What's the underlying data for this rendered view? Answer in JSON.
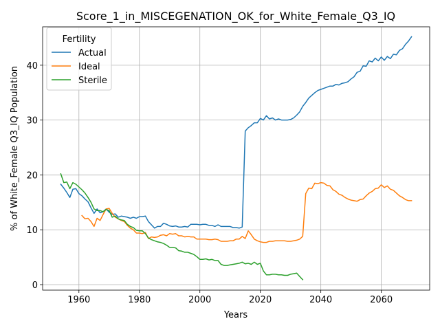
{
  "chart_data": {
    "type": "line",
    "title": "Score_1_in_MISCEGENATION_OK_for_White_Female_Q3_IQ",
    "xlabel": "Years",
    "ylabel": "% of White_Female Q3_IQ Population",
    "xlim": [
      1948,
      2076
    ],
    "ylim": [
      -1,
      47
    ],
    "xticks": [
      1960,
      1980,
      2000,
      2020,
      2040,
      2060
    ],
    "yticks": [
      0,
      10,
      20,
      30,
      40
    ],
    "grid": true,
    "legend": {
      "title": "Fertility",
      "placement": "top-left"
    },
    "series": [
      {
        "name": "Actual",
        "color": "#1f77b4",
        "points": [
          [
            1954,
            18.3
          ],
          [
            1955,
            17.6
          ],
          [
            1956,
            16.8
          ],
          [
            1957,
            15.9
          ],
          [
            1958,
            17.4
          ],
          [
            1959,
            17.5
          ],
          [
            1960,
            16.6
          ],
          [
            1961,
            16.2
          ],
          [
            1962,
            15.6
          ],
          [
            1963,
            15.1
          ],
          [
            1964,
            14.0
          ],
          [
            1965,
            13.0
          ],
          [
            1966,
            13.8
          ],
          [
            1967,
            13.1
          ],
          [
            1968,
            13.3
          ],
          [
            1969,
            13.8
          ],
          [
            1970,
            13.2
          ],
          [
            1971,
            12.8
          ],
          [
            1972,
            12.9
          ],
          [
            1973,
            12.3
          ],
          [
            1974,
            12.5
          ],
          [
            1975,
            12.4
          ],
          [
            1976,
            12.3
          ],
          [
            1977,
            12.1
          ],
          [
            1978,
            12.3
          ],
          [
            1979,
            12.1
          ],
          [
            1980,
            12.4
          ],
          [
            1981,
            12.4
          ],
          [
            1982,
            12.5
          ],
          [
            1983,
            11.5
          ],
          [
            1984,
            10.9
          ],
          [
            1985,
            10.3
          ],
          [
            1986,
            10.6
          ],
          [
            1987,
            10.6
          ],
          [
            1988,
            11.2
          ],
          [
            1989,
            11.0
          ],
          [
            1990,
            10.7
          ],
          [
            1991,
            10.6
          ],
          [
            1992,
            10.7
          ],
          [
            1993,
            10.5
          ],
          [
            1994,
            10.5
          ],
          [
            1995,
            10.6
          ],
          [
            1996,
            10.5
          ],
          [
            1997,
            11.0
          ],
          [
            1998,
            11.0
          ],
          [
            1999,
            11.0
          ],
          [
            2000,
            10.9
          ],
          [
            2001,
            11.0
          ],
          [
            2002,
            11.0
          ],
          [
            2003,
            10.8
          ],
          [
            2004,
            10.8
          ],
          [
            2005,
            10.6
          ],
          [
            2006,
            10.9
          ],
          [
            2007,
            10.6
          ],
          [
            2008,
            10.6
          ],
          [
            2009,
            10.6
          ],
          [
            2010,
            10.6
          ],
          [
            2011,
            10.4
          ],
          [
            2012,
            10.4
          ],
          [
            2013,
            10.3
          ],
          [
            2014,
            10.5
          ],
          [
            2015,
            28.0
          ],
          [
            2016,
            28.6
          ],
          [
            2017,
            29.0
          ],
          [
            2018,
            29.5
          ],
          [
            2019,
            29.5
          ],
          [
            2020,
            30.3
          ],
          [
            2021,
            30.0
          ],
          [
            2022,
            30.8
          ],
          [
            2023,
            30.2
          ],
          [
            2024,
            30.4
          ],
          [
            2025,
            30.0
          ],
          [
            2026,
            30.2
          ],
          [
            2027,
            30.0
          ],
          [
            2028,
            30.0
          ],
          [
            2029,
            30.0
          ],
          [
            2030,
            30.1
          ],
          [
            2031,
            30.4
          ],
          [
            2032,
            30.9
          ],
          [
            2033,
            31.5
          ],
          [
            2034,
            32.5
          ],
          [
            2035,
            33.2
          ],
          [
            2036,
            34.0
          ],
          [
            2037,
            34.5
          ],
          [
            2038,
            35.0
          ],
          [
            2039,
            35.4
          ],
          [
            2040,
            35.6
          ],
          [
            2041,
            35.8
          ],
          [
            2042,
            36.0
          ],
          [
            2043,
            36.2
          ],
          [
            2044,
            36.2
          ],
          [
            2045,
            36.5
          ],
          [
            2046,
            36.4
          ],
          [
            2047,
            36.7
          ],
          [
            2048,
            36.8
          ],
          [
            2049,
            37.0
          ],
          [
            2050,
            37.5
          ],
          [
            2051,
            37.9
          ],
          [
            2052,
            38.7
          ],
          [
            2053,
            38.9
          ],
          [
            2054,
            39.9
          ],
          [
            2055,
            39.8
          ],
          [
            2056,
            40.8
          ],
          [
            2057,
            40.6
          ],
          [
            2058,
            41.3
          ],
          [
            2059,
            40.8
          ],
          [
            2060,
            41.5
          ],
          [
            2061,
            40.9
          ],
          [
            2062,
            41.6
          ],
          [
            2063,
            41.2
          ],
          [
            2064,
            42.0
          ],
          [
            2065,
            41.9
          ],
          [
            2066,
            42.7
          ],
          [
            2067,
            43.0
          ],
          [
            2068,
            43.8
          ],
          [
            2069,
            44.4
          ],
          [
            2070,
            45.2
          ]
        ]
      },
      {
        "name": "Ideal",
        "color": "#ff7f0e",
        "points": [
          [
            1961,
            12.6
          ],
          [
            1962,
            12.0
          ],
          [
            1963,
            12.1
          ],
          [
            1964,
            11.5
          ],
          [
            1965,
            10.6
          ],
          [
            1966,
            12.1
          ],
          [
            1967,
            11.7
          ],
          [
            1968,
            12.8
          ],
          [
            1969,
            13.8
          ],
          [
            1970,
            13.9
          ],
          [
            1971,
            13.0
          ],
          [
            1972,
            12.3
          ],
          [
            1973,
            12.0
          ],
          [
            1974,
            11.7
          ],
          [
            1975,
            11.5
          ],
          [
            1976,
            10.8
          ],
          [
            1977,
            10.3
          ],
          [
            1978,
            10.0
          ],
          [
            1979,
            9.4
          ],
          [
            1980,
            9.4
          ],
          [
            1981,
            9.3
          ],
          [
            1982,
            9.5
          ],
          [
            1983,
            8.4
          ],
          [
            1984,
            8.7
          ],
          [
            1985,
            8.6
          ],
          [
            1986,
            8.7
          ],
          [
            1987,
            9.0
          ],
          [
            1988,
            9.1
          ],
          [
            1989,
            8.9
          ],
          [
            1990,
            9.3
          ],
          [
            1991,
            9.2
          ],
          [
            1992,
            9.3
          ],
          [
            1993,
            8.9
          ],
          [
            1994,
            8.9
          ],
          [
            1995,
            8.7
          ],
          [
            1996,
            8.8
          ],
          [
            1997,
            8.7
          ],
          [
            1998,
            8.7
          ],
          [
            1999,
            8.3
          ],
          [
            2000,
            8.3
          ],
          [
            2001,
            8.3
          ],
          [
            2002,
            8.3
          ],
          [
            2003,
            8.2
          ],
          [
            2004,
            8.2
          ],
          [
            2005,
            8.3
          ],
          [
            2006,
            8.2
          ],
          [
            2007,
            7.9
          ],
          [
            2008,
            7.9
          ],
          [
            2009,
            7.9
          ],
          [
            2010,
            8.0
          ],
          [
            2011,
            8.0
          ],
          [
            2012,
            8.3
          ],
          [
            2013,
            8.3
          ],
          [
            2014,
            8.8
          ],
          [
            2015,
            8.4
          ],
          [
            2016,
            9.8
          ],
          [
            2017,
            9.1
          ],
          [
            2018,
            8.3
          ],
          [
            2019,
            8.0
          ],
          [
            2020,
            7.8
          ],
          [
            2021,
            7.7
          ],
          [
            2022,
            7.7
          ],
          [
            2023,
            7.9
          ],
          [
            2024,
            7.9
          ],
          [
            2025,
            8.0
          ],
          [
            2026,
            8.0
          ],
          [
            2027,
            8.0
          ],
          [
            2028,
            8.0
          ],
          [
            2029,
            7.9
          ],
          [
            2030,
            7.9
          ],
          [
            2031,
            8.0
          ],
          [
            2032,
            8.1
          ],
          [
            2033,
            8.3
          ],
          [
            2034,
            8.8
          ],
          [
            2035,
            16.6
          ],
          [
            2036,
            17.6
          ],
          [
            2037,
            17.5
          ],
          [
            2038,
            18.5
          ],
          [
            2039,
            18.4
          ],
          [
            2040,
            18.6
          ],
          [
            2041,
            18.5
          ],
          [
            2042,
            18.1
          ],
          [
            2043,
            18.0
          ],
          [
            2044,
            17.3
          ],
          [
            2045,
            17.0
          ],
          [
            2046,
            16.5
          ],
          [
            2047,
            16.3
          ],
          [
            2048,
            15.9
          ],
          [
            2049,
            15.6
          ],
          [
            2050,
            15.4
          ],
          [
            2051,
            15.3
          ],
          [
            2052,
            15.2
          ],
          [
            2053,
            15.5
          ],
          [
            2054,
            15.6
          ],
          [
            2055,
            16.2
          ],
          [
            2056,
            16.7
          ],
          [
            2057,
            17.0
          ],
          [
            2058,
            17.5
          ],
          [
            2059,
            17.6
          ],
          [
            2060,
            18.2
          ],
          [
            2061,
            17.7
          ],
          [
            2062,
            18.0
          ],
          [
            2063,
            17.4
          ],
          [
            2064,
            17.2
          ],
          [
            2065,
            16.7
          ],
          [
            2066,
            16.2
          ],
          [
            2067,
            15.9
          ],
          [
            2068,
            15.5
          ],
          [
            2069,
            15.3
          ],
          [
            2070,
            15.3
          ]
        ]
      },
      {
        "name": "Sterile",
        "color": "#2ca02c",
        "points": [
          [
            1954,
            20.2
          ],
          [
            1955,
            18.6
          ],
          [
            1956,
            18.7
          ],
          [
            1957,
            17.5
          ],
          [
            1958,
            18.6
          ],
          [
            1959,
            18.3
          ],
          [
            1960,
            17.8
          ],
          [
            1961,
            17.3
          ],
          [
            1962,
            16.7
          ],
          [
            1963,
            15.9
          ],
          [
            1964,
            15.0
          ],
          [
            1965,
            13.8
          ],
          [
            1966,
            13.5
          ],
          [
            1967,
            13.5
          ],
          [
            1968,
            13.3
          ],
          [
            1969,
            13.7
          ],
          [
            1970,
            13.5
          ],
          [
            1971,
            12.3
          ],
          [
            1972,
            12.5
          ],
          [
            1973,
            12.0
          ],
          [
            1974,
            11.8
          ],
          [
            1975,
            11.7
          ],
          [
            1976,
            11.0
          ],
          [
            1977,
            10.6
          ],
          [
            1978,
            10.4
          ],
          [
            1979,
            9.9
          ],
          [
            1980,
            9.8
          ],
          [
            1981,
            9.8
          ],
          [
            1982,
            9.3
          ],
          [
            1983,
            8.5
          ],
          [
            1984,
            8.2
          ],
          [
            1985,
            8.0
          ],
          [
            1986,
            7.8
          ],
          [
            1987,
            7.7
          ],
          [
            1988,
            7.5
          ],
          [
            1989,
            7.2
          ],
          [
            1990,
            6.8
          ],
          [
            1991,
            6.8
          ],
          [
            1992,
            6.7
          ],
          [
            1993,
            6.2
          ],
          [
            1994,
            6.1
          ],
          [
            1995,
            5.9
          ],
          [
            1996,
            5.9
          ],
          [
            1997,
            5.7
          ],
          [
            1998,
            5.5
          ],
          [
            1999,
            5.1
          ],
          [
            2000,
            4.6
          ],
          [
            2001,
            4.6
          ],
          [
            2002,
            4.7
          ],
          [
            2003,
            4.5
          ],
          [
            2004,
            4.6
          ],
          [
            2005,
            4.4
          ],
          [
            2006,
            4.4
          ],
          [
            2007,
            3.7
          ],
          [
            2008,
            3.5
          ],
          [
            2009,
            3.5
          ],
          [
            2010,
            3.6
          ],
          [
            2011,
            3.7
          ],
          [
            2012,
            3.8
          ],
          [
            2013,
            3.9
          ],
          [
            2014,
            4.1
          ],
          [
            2015,
            3.8
          ],
          [
            2016,
            3.9
          ],
          [
            2017,
            3.7
          ],
          [
            2018,
            4.1
          ],
          [
            2019,
            3.7
          ],
          [
            2020,
            3.9
          ],
          [
            2021,
            2.5
          ],
          [
            2022,
            1.8
          ],
          [
            2023,
            1.8
          ],
          [
            2024,
            1.9
          ],
          [
            2025,
            1.9
          ],
          [
            2026,
            1.8
          ],
          [
            2027,
            1.8
          ],
          [
            2028,
            1.7
          ],
          [
            2029,
            1.7
          ],
          [
            2030,
            1.9
          ],
          [
            2031,
            2.0
          ],
          [
            2032,
            2.1
          ],
          [
            2033,
            1.5
          ],
          [
            2034,
            0.9
          ]
        ]
      }
    ]
  }
}
